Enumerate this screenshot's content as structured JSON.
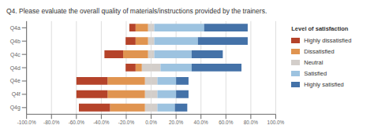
{
  "chart_data": {
    "type": "bar",
    "orientation": "horizontal",
    "stacked": true,
    "title": "Q4. Please evaluate the overall quality of materials/instructions provided by the trainers.",
    "legend_title": "Level of satisfaction",
    "legend": "right",
    "grid": true,
    "categories": [
      "Q4a",
      "Q4b",
      "Q4c",
      "Q4d",
      "Q4e",
      "Q4f",
      "Q4g"
    ],
    "series": [
      {
        "name": "Highly dissatisfied",
        "color": "#b5432a",
        "values": [
          -5,
          -8,
          -15,
          -8,
          -25,
          -25,
          -25
        ]
      },
      {
        "name": "Dissatisfied",
        "color": "#e09450",
        "values": [
          -10,
          -10,
          -20,
          -5,
          -30,
          -30,
          -28
        ]
      },
      {
        "name": "Neutral",
        "color": "#d3ceca",
        "values": [
          [
            -2.5,
            2.5
          ],
          [
            -2.5,
            2.5
          ],
          [
            -2.5,
            2.5
          ],
          [
            -7.5,
            7.5
          ],
          [
            -5,
            5
          ],
          [
            -5,
            5
          ],
          [
            -5,
            5
          ]
        ]
      },
      {
        "name": "Satisfied",
        "color": "#9dc3e0",
        "values": [
          40,
          35,
          30,
          25,
          15,
          15,
          14
        ]
      },
      {
        "name": "Highly satisfied",
        "color": "#4472a8",
        "values": [
          35,
          40,
          25,
          40,
          10,
          10,
          10
        ]
      }
    ],
    "xlim": [
      -100,
      100
    ],
    "xticks": [
      {
        "value": -100,
        "label": "-100.0%"
      },
      {
        "value": -80,
        "label": "-80.0%"
      },
      {
        "value": -60,
        "label": "-60.0%"
      },
      {
        "value": -40,
        "label": "-40.0%"
      },
      {
        "value": -20,
        "label": "-20.0%"
      },
      {
        "value": 0,
        "label": "0.0%"
      },
      {
        "value": 20,
        "label": "20.0%"
      },
      {
        "value": 40,
        "label": "40.0%"
      },
      {
        "value": 60,
        "label": "60.0%"
      },
      {
        "value": 80,
        "label": "80.0%"
      },
      {
        "value": 100,
        "label": "100.0%"
      }
    ]
  }
}
